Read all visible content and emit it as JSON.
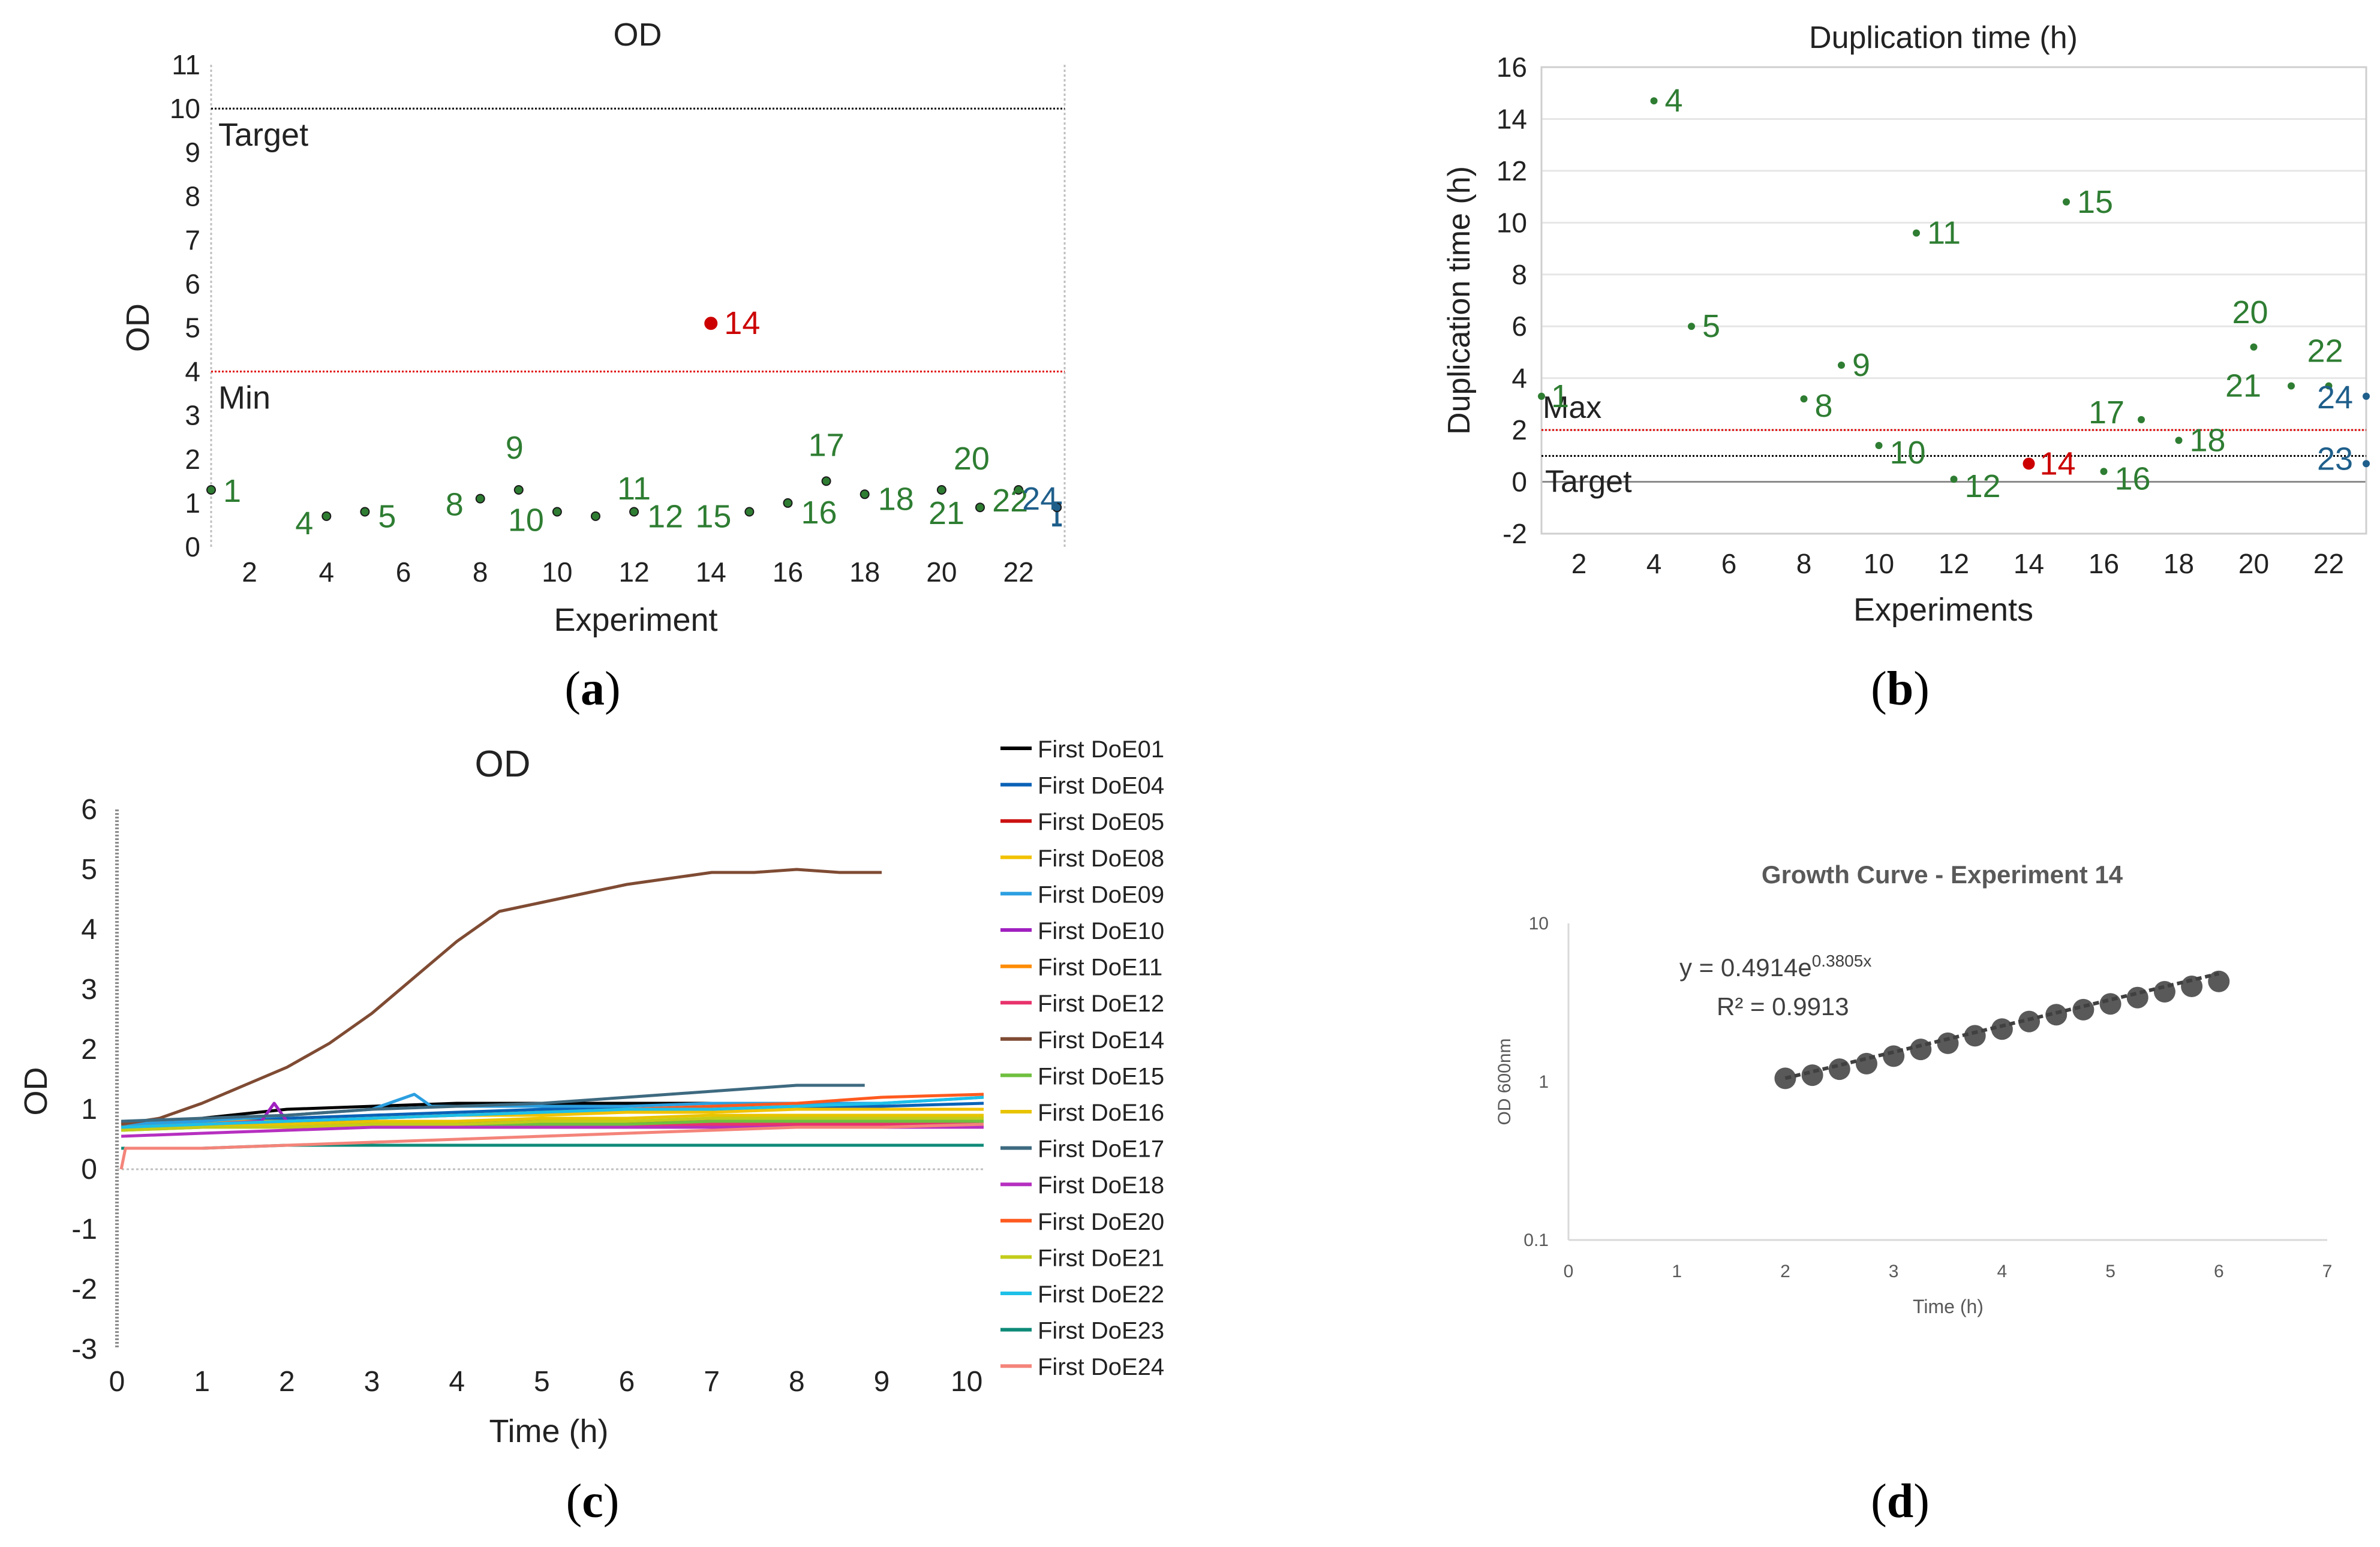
{
  "panels": [
    {
      "letter": "a"
    },
    {
      "letter": "b"
    },
    {
      "letter": "c"
    },
    {
      "letter": "d"
    }
  ],
  "chart_data": [
    {
      "id": "a",
      "type": "scatter",
      "title": "OD",
      "xlabel": "Experiment",
      "ylabel": "OD",
      "xlim": [
        1,
        23.2
      ],
      "ylim": [
        0,
        11
      ],
      "xticks": [
        "2",
        "4",
        "6",
        "8",
        "10",
        "12",
        "14",
        "16",
        "18",
        "20",
        "22"
      ],
      "xtick_values": [
        2,
        4,
        6,
        8,
        10,
        12,
        14,
        16,
        18,
        20,
        22
      ],
      "yticks": [
        "0",
        "1",
        "2",
        "3",
        "4",
        "5",
        "6",
        "7",
        "8",
        "9",
        "10",
        "11"
      ],
      "ytick_values": [
        0,
        1,
        2,
        3,
        4,
        5,
        6,
        7,
        8,
        9,
        10,
        11
      ],
      "reference_lines": [
        {
          "label": "Target",
          "value": 10,
          "color": "#000000"
        },
        {
          "label": "Min",
          "value": 4,
          "color": "#e00000"
        }
      ],
      "points": [
        {
          "label": "1",
          "x": 1,
          "y": 1.3,
          "color": "#2e7d32"
        },
        {
          "label": "4",
          "x": 4,
          "y": 0.7,
          "color": "#2e7d32"
        },
        {
          "label": "5",
          "x": 5,
          "y": 0.8,
          "color": "#2e7d32"
        },
        {
          "label": "8",
          "x": 8,
          "y": 1.1,
          "color": "#2e7d32"
        },
        {
          "label": "9",
          "x": 9,
          "y": 1.3,
          "color": "#2e7d32"
        },
        {
          "label": "10",
          "x": 10,
          "y": 0.8,
          "color": "#2e7d32"
        },
        {
          "label": "11",
          "x": 11,
          "y": 0.7,
          "color": "#2e7d32"
        },
        {
          "label": "12",
          "x": 12,
          "y": 0.8,
          "color": "#2e7d32"
        },
        {
          "label": "14",
          "x": 14,
          "y": 5.1,
          "color": "#cc0000"
        },
        {
          "label": "15",
          "x": 15,
          "y": 0.8,
          "color": "#2e7d32"
        },
        {
          "label": "16",
          "x": 16,
          "y": 1.0,
          "color": "#2e7d32"
        },
        {
          "label": "17",
          "x": 17,
          "y": 1.5,
          "color": "#2e7d32"
        },
        {
          "label": "18",
          "x": 18,
          "y": 1.2,
          "color": "#2e7d32"
        },
        {
          "label": "20",
          "x": 20,
          "y": 1.3,
          "color": "#2e7d32"
        },
        {
          "label": "21",
          "x": 21,
          "y": 0.9,
          "color": "#2e7d32"
        },
        {
          "label": "22",
          "x": 22,
          "y": 1.3,
          "color": "#2e7d32"
        },
        {
          "label": "24",
          "x": 23,
          "y": 0.9,
          "color": "#1f5f8b"
        }
      ]
    },
    {
      "id": "b",
      "type": "scatter",
      "title": "Duplication time (h)",
      "xlabel": "Experiments",
      "ylabel": "Duplication time (h)",
      "xlim": [
        1,
        23
      ],
      "ylim": [
        -2,
        16
      ],
      "xticks": [
        "2",
        "4",
        "6",
        "8",
        "10",
        "12",
        "14",
        "16",
        "18",
        "20",
        "22"
      ],
      "xtick_values": [
        2,
        4,
        6,
        8,
        10,
        12,
        14,
        16,
        18,
        20,
        22
      ],
      "yticks": [
        "-2",
        "0",
        "2",
        "4",
        "6",
        "8",
        "10",
        "12",
        "14",
        "16"
      ],
      "ytick_values": [
        -2,
        0,
        2,
        4,
        6,
        8,
        10,
        12,
        14,
        16
      ],
      "reference_lines": [
        {
          "label": "Max",
          "value": 2,
          "color": "#e00000"
        },
        {
          "label": "Target",
          "value": 1,
          "color": "#000000"
        }
      ],
      "points": [
        {
          "label": "1",
          "x": 1,
          "y": 3.3,
          "color": "#2e7d32"
        },
        {
          "label": "4",
          "x": 4,
          "y": 14.7,
          "color": "#2e7d32"
        },
        {
          "label": "5",
          "x": 5,
          "y": 6.0,
          "color": "#2e7d32"
        },
        {
          "label": "8",
          "x": 8,
          "y": 3.2,
          "color": "#2e7d32"
        },
        {
          "label": "9",
          "x": 9,
          "y": 4.5,
          "color": "#2e7d32"
        },
        {
          "label": "10",
          "x": 10,
          "y": 1.4,
          "color": "#2e7d32"
        },
        {
          "label": "11",
          "x": 11,
          "y": 9.6,
          "color": "#2e7d32"
        },
        {
          "label": "12",
          "x": 12,
          "y": 0.1,
          "color": "#2e7d32"
        },
        {
          "label": "14",
          "x": 14,
          "y": 0.7,
          "color": "#cc0000"
        },
        {
          "label": "15",
          "x": 15,
          "y": 10.8,
          "color": "#2e7d32"
        },
        {
          "label": "16",
          "x": 16,
          "y": 0.4,
          "color": "#2e7d32"
        },
        {
          "label": "17",
          "x": 17,
          "y": 2.4,
          "color": "#2e7d32"
        },
        {
          "label": "18",
          "x": 18,
          "y": 1.6,
          "color": "#2e7d32"
        },
        {
          "label": "20",
          "x": 20,
          "y": 5.2,
          "color": "#2e7d32"
        },
        {
          "label": "21",
          "x": 21,
          "y": 3.7,
          "color": "#2e7d32"
        },
        {
          "label": "22",
          "x": 22,
          "y": 3.7,
          "color": "#2e7d32"
        },
        {
          "label": "23",
          "x": 23,
          "y": 0.7,
          "color": "#1f5f8b"
        },
        {
          "label": "24",
          "x": 23,
          "y": 3.3,
          "color": "#1f5f8b"
        }
      ]
    },
    {
      "id": "c",
      "type": "line",
      "title": "OD",
      "xlabel": "Time (h)",
      "ylabel": "OD",
      "xlim": [
        0,
        10.2
      ],
      "ylim": [
        -3,
        6
      ],
      "xticks": [
        "0",
        "1",
        "2",
        "3",
        "4",
        "5",
        "6",
        "7",
        "8",
        "9",
        "10"
      ],
      "xtick_values": [
        0,
        1,
        2,
        3,
        4,
        5,
        6,
        7,
        8,
        9,
        10
      ],
      "yticks": [
        "-3",
        "-2",
        "-1",
        "0",
        "1",
        "2",
        "3",
        "4",
        "5",
        "6"
      ],
      "ytick_values": [
        -3,
        -2,
        -1,
        0,
        1,
        2,
        3,
        4,
        5,
        6
      ],
      "series": [
        {
          "name": "First DoE01",
          "color": "#000000",
          "x": [
            0.05,
            1,
            2,
            3,
            4,
            5,
            6,
            7
          ],
          "values": [
            0.7,
            0.85,
            1.0,
            1.05,
            1.1,
            1.1,
            1.1,
            1.1
          ]
        },
        {
          "name": "First DoE04",
          "color": "#0a62b7",
          "x": [
            0.05,
            1,
            2,
            3,
            4,
            5,
            6,
            7,
            8,
            9,
            10.2
          ],
          "values": [
            0.75,
            0.8,
            0.85,
            0.9,
            0.95,
            1.0,
            1.0,
            1.0,
            1.05,
            1.05,
            1.1
          ]
        },
        {
          "name": "First DoE05",
          "color": "#cc1111",
          "x": [
            0.05,
            1,
            2,
            3,
            4,
            5,
            6,
            7,
            8,
            9,
            10.2
          ],
          "values": [
            0.8,
            0.8,
            0.8,
            0.8,
            0.8,
            0.8,
            0.8,
            0.8,
            0.8,
            0.8,
            0.8
          ]
        },
        {
          "name": "First DoE08",
          "color": "#f2c200",
          "x": [
            0.05,
            1,
            2,
            3,
            4,
            5,
            6,
            7,
            8,
            9,
            10.2
          ],
          "values": [
            0.75,
            0.8,
            0.8,
            0.85,
            0.9,
            0.9,
            0.95,
            0.95,
            1.0,
            1.0,
            1.0
          ]
        },
        {
          "name": "First DoE09",
          "color": "#2b9fe0",
          "x": [
            0.05,
            1,
            2,
            3,
            3.5,
            3.7,
            4,
            5,
            6,
            7,
            8,
            9,
            10.2
          ],
          "values": [
            0.75,
            0.8,
            0.9,
            1.0,
            1.25,
            1.05,
            1.05,
            1.05,
            1.05,
            1.1,
            1.1,
            1.1,
            1.2
          ]
        },
        {
          "name": "First DoE10",
          "color": "#a020c0",
          "x": [
            0.05,
            1,
            1.7,
            1.85,
            2.0,
            2.2,
            3,
            4,
            5,
            6
          ],
          "values": [
            0.7,
            0.75,
            0.8,
            1.1,
            0.8,
            0.8,
            0.8,
            0.8,
            0.8,
            0.8
          ]
        },
        {
          "name": "First DoE11",
          "color": "#ff8c00",
          "x": [
            0.05,
            1,
            2,
            3,
            4,
            5,
            6,
            7,
            8,
            9,
            10.2
          ],
          "values": [
            0.7,
            0.7,
            0.7,
            0.7,
            0.7,
            0.7,
            0.7,
            0.7,
            0.7,
            0.7,
            0.75
          ]
        },
        {
          "name": "First DoE12",
          "color": "#e8336d",
          "x": [
            0.05,
            1,
            2,
            3,
            4,
            5,
            6,
            7,
            8,
            9,
            10.2
          ],
          "values": [
            0.7,
            0.7,
            0.75,
            0.75,
            0.75,
            0.75,
            0.75,
            0.75,
            0.75,
            0.75,
            0.75
          ]
        },
        {
          "name": "First DoE14",
          "color": "#7f4b33",
          "x": [
            0.05,
            0.5,
            1,
            1.5,
            2,
            2.5,
            3,
            3.5,
            4,
            4.5,
            5,
            5.5,
            6,
            6.5,
            7,
            7.5,
            8,
            8.5,
            9
          ],
          "values": [
            0.75,
            0.85,
            1.1,
            1.4,
            1.7,
            2.1,
            2.6,
            3.2,
            3.8,
            4.3,
            4.45,
            4.6,
            4.75,
            4.85,
            4.95,
            4.95,
            5.0,
            4.95,
            4.95
          ]
        },
        {
          "name": "First DoE15",
          "color": "#6fbf3f",
          "x": [
            0.05,
            1,
            2,
            3,
            4,
            5,
            6,
            7,
            8,
            9,
            10.2
          ],
          "values": [
            0.65,
            0.7,
            0.7,
            0.7,
            0.75,
            0.75,
            0.75,
            0.8,
            0.8,
            0.8,
            0.8
          ]
        },
        {
          "name": "First DoE16",
          "color": "#e8c400",
          "x": [
            0.05,
            1,
            2,
            3,
            4,
            5,
            6,
            7,
            8,
            9,
            10.2
          ],
          "values": [
            0.7,
            0.75,
            0.75,
            0.8,
            0.8,
            0.85,
            0.85,
            0.9,
            0.9,
            0.9,
            0.9
          ]
        },
        {
          "name": "First DoE17",
          "color": "#3e6a80",
          "x": [
            0.05,
            1,
            2,
            3,
            4,
            5,
            6,
            7,
            8,
            8.8
          ],
          "values": [
            0.8,
            0.85,
            0.9,
            1.0,
            1.05,
            1.1,
            1.2,
            1.3,
            1.4,
            1.4
          ]
        },
        {
          "name": "First DoE18",
          "color": "#b62fc0",
          "x": [
            0.05,
            1,
            2,
            3,
            4,
            5,
            6,
            7,
            8,
            9,
            10.2
          ],
          "values": [
            0.55,
            0.6,
            0.65,
            0.7,
            0.7,
            0.7,
            0.7,
            0.7,
            0.7,
            0.7,
            0.7
          ]
        },
        {
          "name": "First DoE20",
          "color": "#ff5a1f",
          "x": [
            0.05,
            1,
            2,
            3,
            4,
            5,
            6,
            7,
            8,
            9,
            10.2
          ],
          "values": [
            0.7,
            0.75,
            0.8,
            0.85,
            0.9,
            0.95,
            1.0,
            1.05,
            1.1,
            1.2,
            1.25
          ]
        },
        {
          "name": "First DoE21",
          "color": "#c3cc1a",
          "x": [
            0.05,
            1,
            2,
            3,
            4,
            5,
            6,
            7,
            8,
            9,
            10.2
          ],
          "values": [
            0.65,
            0.7,
            0.7,
            0.75,
            0.75,
            0.8,
            0.8,
            0.85,
            0.85,
            0.85,
            0.85
          ]
        },
        {
          "name": "First DoE22",
          "color": "#1ec0e8",
          "x": [
            0.05,
            1,
            2,
            3,
            4,
            5,
            6,
            7,
            8,
            9,
            10.2
          ],
          "values": [
            0.7,
            0.75,
            0.8,
            0.85,
            0.9,
            0.95,
            1.0,
            1.0,
            1.05,
            1.1,
            1.2
          ]
        },
        {
          "name": "First DoE23",
          "color": "#0e8a78",
          "x": [
            0.05,
            1,
            2,
            3,
            4,
            5,
            6,
            7,
            8,
            9,
            10.2
          ],
          "values": [
            0.35,
            0.35,
            0.4,
            0.4,
            0.4,
            0.4,
            0.4,
            0.4,
            0.4,
            0.4,
            0.4
          ]
        },
        {
          "name": "First DoE24",
          "color": "#f4847a",
          "x": [
            0.05,
            0.1,
            1,
            2,
            3,
            4,
            5,
            6,
            7,
            8,
            9,
            10.2
          ],
          "values": [
            0.0,
            0.35,
            0.35,
            0.4,
            0.45,
            0.5,
            0.55,
            0.6,
            0.65,
            0.7,
            0.7,
            0.75
          ]
        }
      ]
    },
    {
      "id": "d",
      "type": "scatter",
      "title": "Growth Curve - Experiment 14",
      "xlabel": "Time (h)",
      "ylabel": "OD 600nm",
      "xlim": [
        0,
        7
      ],
      "ylim": [
        0.1,
        10
      ],
      "yscale": "log",
      "xticks": [
        "0",
        "1",
        "2",
        "3",
        "4",
        "5",
        "6",
        "7"
      ],
      "xtick_values": [
        0,
        1,
        2,
        3,
        4,
        5,
        6,
        7
      ],
      "yticks": [
        "0.1",
        "1",
        "10"
      ],
      "ytick_values": [
        0.1,
        1,
        10
      ],
      "equation": {
        "base": "y = 0.4914e",
        "exponent": "0.3805x"
      },
      "r_squared": "R² = 0.9913",
      "fit": {
        "a": 0.4914,
        "b": 0.3805
      },
      "x": [
        2.0,
        2.25,
        2.5,
        2.75,
        3.0,
        3.25,
        3.5,
        3.75,
        4.0,
        4.25,
        4.5,
        4.75,
        5.0,
        5.25,
        5.5,
        5.75,
        6.0
      ],
      "values": [
        1.05,
        1.1,
        1.2,
        1.3,
        1.45,
        1.6,
        1.75,
        1.95,
        2.15,
        2.4,
        2.65,
        2.85,
        3.1,
        3.4,
        3.7,
        4.0,
        4.3
      ],
      "color": "#595959"
    }
  ]
}
